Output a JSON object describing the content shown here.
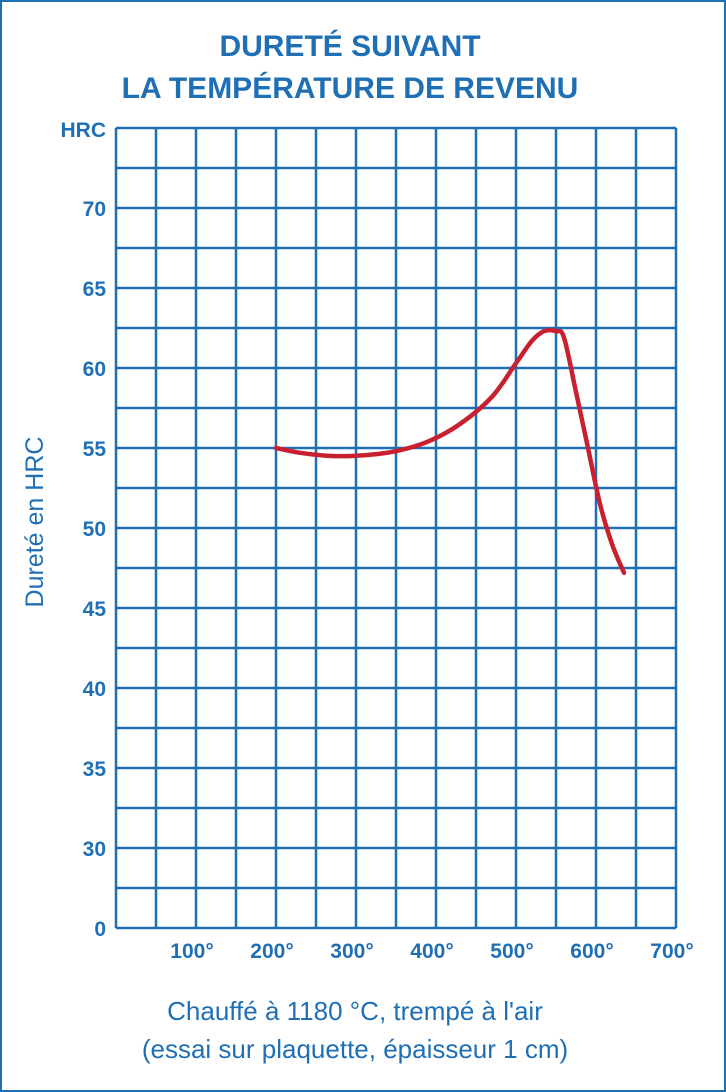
{
  "chart_data": {
    "type": "line",
    "title": [
      "DURETÉ SUIVANT",
      "LA TEMPÉRATURE DE REVENU"
    ],
    "ylabel": "Dureté en HRC",
    "yunit": "HRC",
    "caption": [
      "Chauffé à 1180 °C, trempé à l'air",
      "(essai sur plaquette, épaisseur 1 cm)"
    ],
    "x_ticks": [
      "100°",
      "200°",
      "300°",
      "400°",
      "500°",
      "600°",
      "700°"
    ],
    "y_ticks": [
      "0",
      "30",
      "35",
      "40",
      "45",
      "50",
      "55",
      "60",
      "65",
      "70"
    ],
    "grid": true,
    "colors": {
      "grid": "#1f6fb5",
      "series": "#c8202f"
    },
    "series": [
      {
        "x": [
          200,
          230,
          270,
          310,
          350,
          390,
          430,
          470,
          500,
          520,
          535,
          550,
          560,
          575,
          590,
          605,
          620,
          635
        ],
        "y": [
          55,
          54.7,
          54.5,
          54.55,
          54.8,
          55.4,
          56.5,
          58.2,
          60.3,
          61.7,
          62.3,
          62.3,
          61.9,
          58.5,
          55,
          51.5,
          49,
          47.2
        ]
      }
    ]
  }
}
